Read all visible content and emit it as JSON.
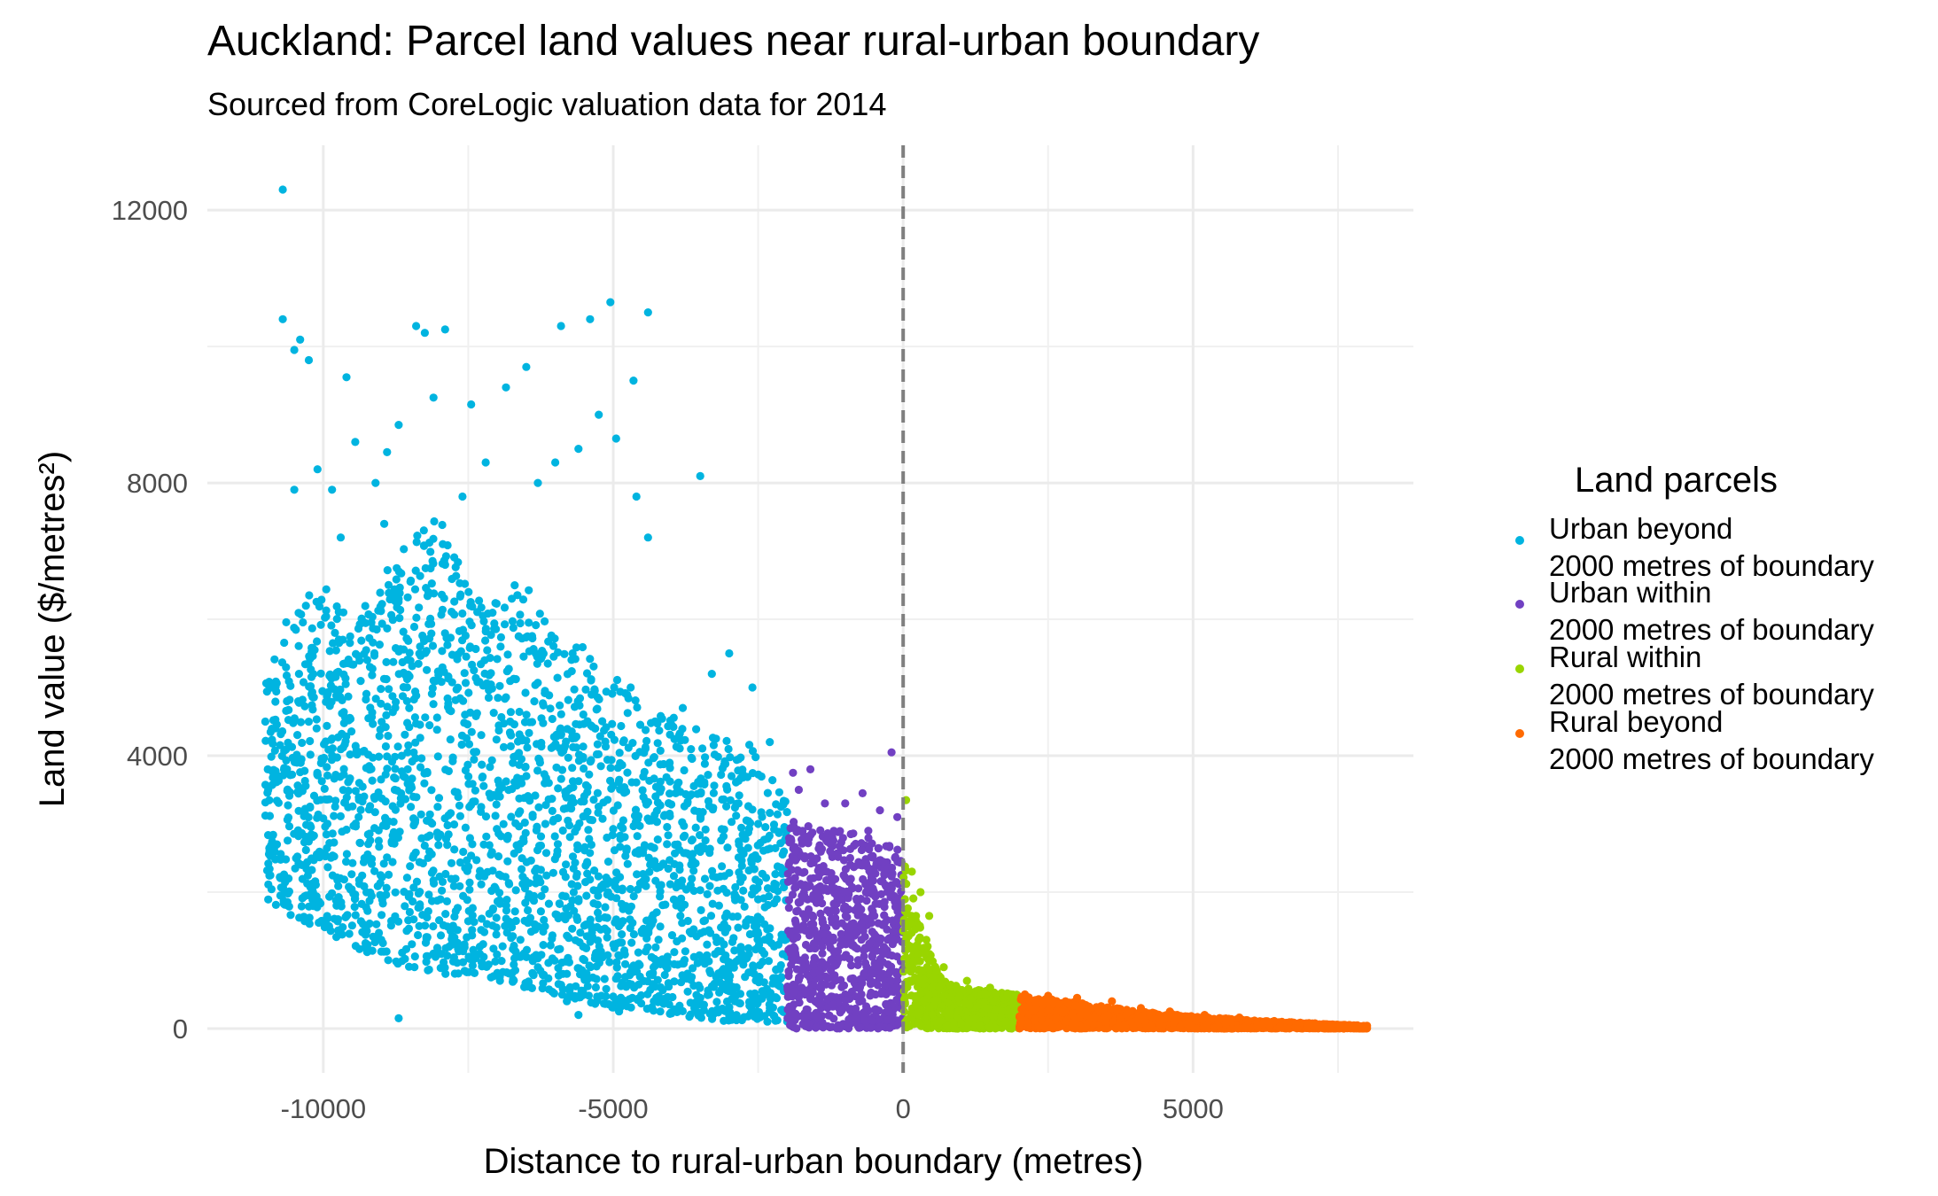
{
  "chart_data": {
    "type": "scatter",
    "title": "Auckland: Parcel land values near rural-urban boundary",
    "subtitle": "Sourced from CoreLogic valuation data for 2014",
    "xlabel": "Distance to rural-urban boundary (metres)",
    "ylabel": "Land value ($/metres²)",
    "xlim": [
      -12000,
      8800
    ],
    "ylim": [
      -650,
      12950
    ],
    "x_ticks": [
      -10000,
      -5000,
      0,
      5000
    ],
    "y_ticks": [
      0,
      4000,
      8000,
      12000
    ],
    "grid": true,
    "reference_line": {
      "x": 0,
      "style": "dashed",
      "color": "#7f7f7f"
    },
    "legend": {
      "title": "Land parcels",
      "placement": "right"
    },
    "series": [
      {
        "name": "Urban beyond\n2000 metres of boundary",
        "color": "#00B4E0",
        "x_range": [
          -11000,
          -2000
        ],
        "points": [
          [
            -10700,
            12300
          ],
          [
            -10700,
            10400
          ],
          [
            -10400,
            10100
          ],
          [
            -10250,
            9800
          ],
          [
            -10500,
            9950
          ],
          [
            -9600,
            9550
          ],
          [
            -8400,
            10300
          ],
          [
            -8250,
            10200
          ],
          [
            -7900,
            10250
          ],
          [
            -5400,
            10400
          ],
          [
            -5050,
            10650
          ],
          [
            -4400,
            10500
          ],
          [
            -4650,
            9500
          ],
          [
            -6500,
            9700
          ],
          [
            -6850,
            9400
          ],
          [
            -5900,
            10300
          ],
          [
            -5250,
            9000
          ],
          [
            -4950,
            8650
          ],
          [
            -3500,
            8100
          ],
          [
            -8700,
            8850
          ],
          [
            -8100,
            9250
          ],
          [
            -7450,
            9150
          ],
          [
            -8900,
            8450
          ],
          [
            -9450,
            8600
          ],
          [
            -10100,
            8200
          ],
          [
            -9850,
            7900
          ],
          [
            -10500,
            7900
          ],
          [
            -9100,
            8000
          ],
          [
            -7200,
            8300
          ],
          [
            -6000,
            8300
          ],
          [
            -5600,
            8500
          ],
          [
            -4600,
            7800
          ],
          [
            -4400,
            7200
          ],
          [
            -6300,
            8000
          ],
          [
            -7600,
            7800
          ],
          [
            -8950,
            7400
          ],
          [
            -9700,
            7200
          ],
          [
            -3000,
            5500
          ],
          [
            -2600,
            5000
          ],
          [
            -3300,
            5200
          ],
          [
            -10900,
            5000
          ],
          [
            -11000,
            4500
          ],
          [
            -10950,
            3500
          ],
          [
            -10800,
            2700
          ],
          [
            -10600,
            2200
          ],
          [
            -9900,
            1500
          ],
          [
            -9000,
            1300
          ],
          [
            -8700,
            150
          ],
          [
            -8100,
            1100
          ],
          [
            -7300,
            1200
          ],
          [
            -6300,
            900
          ],
          [
            -5800,
            400
          ],
          [
            -5600,
            200
          ],
          [
            -4900,
            250
          ],
          [
            -4300,
            400
          ],
          [
            -3600,
            300
          ],
          [
            -2900,
            400
          ],
          [
            -2300,
            300
          ],
          [
            -2100,
            1300
          ],
          [
            -2500,
            3000
          ],
          [
            -2300,
            4200
          ],
          [
            -3800,
            4700
          ],
          [
            -4700,
            5000
          ],
          [
            -5700,
            5500
          ],
          [
            -6700,
            6500
          ],
          [
            -7900,
            6800
          ],
          [
            -8700,
            6300
          ],
          [
            -9800,
            5800
          ],
          [
            -10300,
            6200
          ]
        ],
        "envelope": [
          [
            -11000,
            1900,
            5200
          ],
          [
            -10500,
            1600,
            6300
          ],
          [
            -10000,
            1400,
            6500
          ],
          [
            -9500,
            1200,
            6000
          ],
          [
            -9000,
            1000,
            6600
          ],
          [
            -8500,
            900,
            7200
          ],
          [
            -8000,
            800,
            7500
          ],
          [
            -7500,
            800,
            6500
          ],
          [
            -7000,
            700,
            6300
          ],
          [
            -6500,
            600,
            6500
          ],
          [
            -6000,
            500,
            5800
          ],
          [
            -5500,
            400,
            5600
          ],
          [
            -5000,
            300,
            5200
          ],
          [
            -4500,
            300,
            4700
          ],
          [
            -4000,
            200,
            4600
          ],
          [
            -3500,
            150,
            4400
          ],
          [
            -3000,
            100,
            4300
          ],
          [
            -2500,
            100,
            4100
          ],
          [
            -2000,
            100,
            3300
          ]
        ]
      },
      {
        "name": "Urban within\n2000 metres of boundary",
        "color": "#7140C2",
        "x_range": [
          -2000,
          0
        ],
        "points": [
          [
            -200,
            4050
          ],
          [
            -1600,
            3800
          ],
          [
            -1900,
            3750
          ],
          [
            -1350,
            3300
          ],
          [
            -1000,
            3300
          ],
          [
            -700,
            3450
          ],
          [
            -400,
            3200
          ],
          [
            -100,
            3100
          ],
          [
            -1800,
            3500
          ],
          [
            -600,
            2900
          ]
        ],
        "envelope": [
          [
            -2000,
            0,
            3100
          ],
          [
            -1500,
            0,
            3000
          ],
          [
            -1000,
            0,
            2900
          ],
          [
            -500,
            0,
            2800
          ],
          [
            0,
            0,
            2600
          ]
        ]
      },
      {
        "name": "Rural within\n2000 metres of boundary",
        "color": "#99D500",
        "x_range": [
          0,
          2000
        ],
        "points": [
          [
            50,
            3350
          ],
          [
            150,
            2300
          ],
          [
            300,
            2000
          ],
          [
            450,
            1650
          ],
          [
            400,
            1300
          ],
          [
            700,
            900
          ],
          [
            1100,
            700
          ],
          [
            1500,
            600
          ],
          [
            1800,
            500
          ],
          [
            250,
            1100
          ]
        ],
        "envelope": [
          [
            0,
            0,
            2500
          ],
          [
            300,
            0,
            1500
          ],
          [
            600,
            0,
            800
          ],
          [
            1000,
            0,
            600
          ],
          [
            1500,
            0,
            550
          ],
          [
            2000,
            0,
            500
          ]
        ]
      },
      {
        "name": "Rural beyond\n2000 metres of boundary",
        "color": "#FF6A00",
        "x_range": [
          2000,
          8000
        ],
        "points": [
          [
            2100,
            500
          ],
          [
            2500,
            480
          ],
          [
            3000,
            450
          ],
          [
            3600,
            400
          ],
          [
            4100,
            300
          ],
          [
            4600,
            250
          ],
          [
            5200,
            200
          ],
          [
            5800,
            160
          ],
          [
            6400,
            110
          ],
          [
            7000,
            80
          ],
          [
            7400,
            60
          ],
          [
            7700,
            50
          ],
          [
            8000,
            40
          ]
        ],
        "envelope": [
          [
            2000,
            0,
            500
          ],
          [
            3000,
            0,
            380
          ],
          [
            4000,
            0,
            260
          ],
          [
            5000,
            0,
            190
          ],
          [
            6000,
            0,
            120
          ],
          [
            7000,
            0,
            80
          ],
          [
            8000,
            0,
            40
          ]
        ]
      }
    ]
  }
}
